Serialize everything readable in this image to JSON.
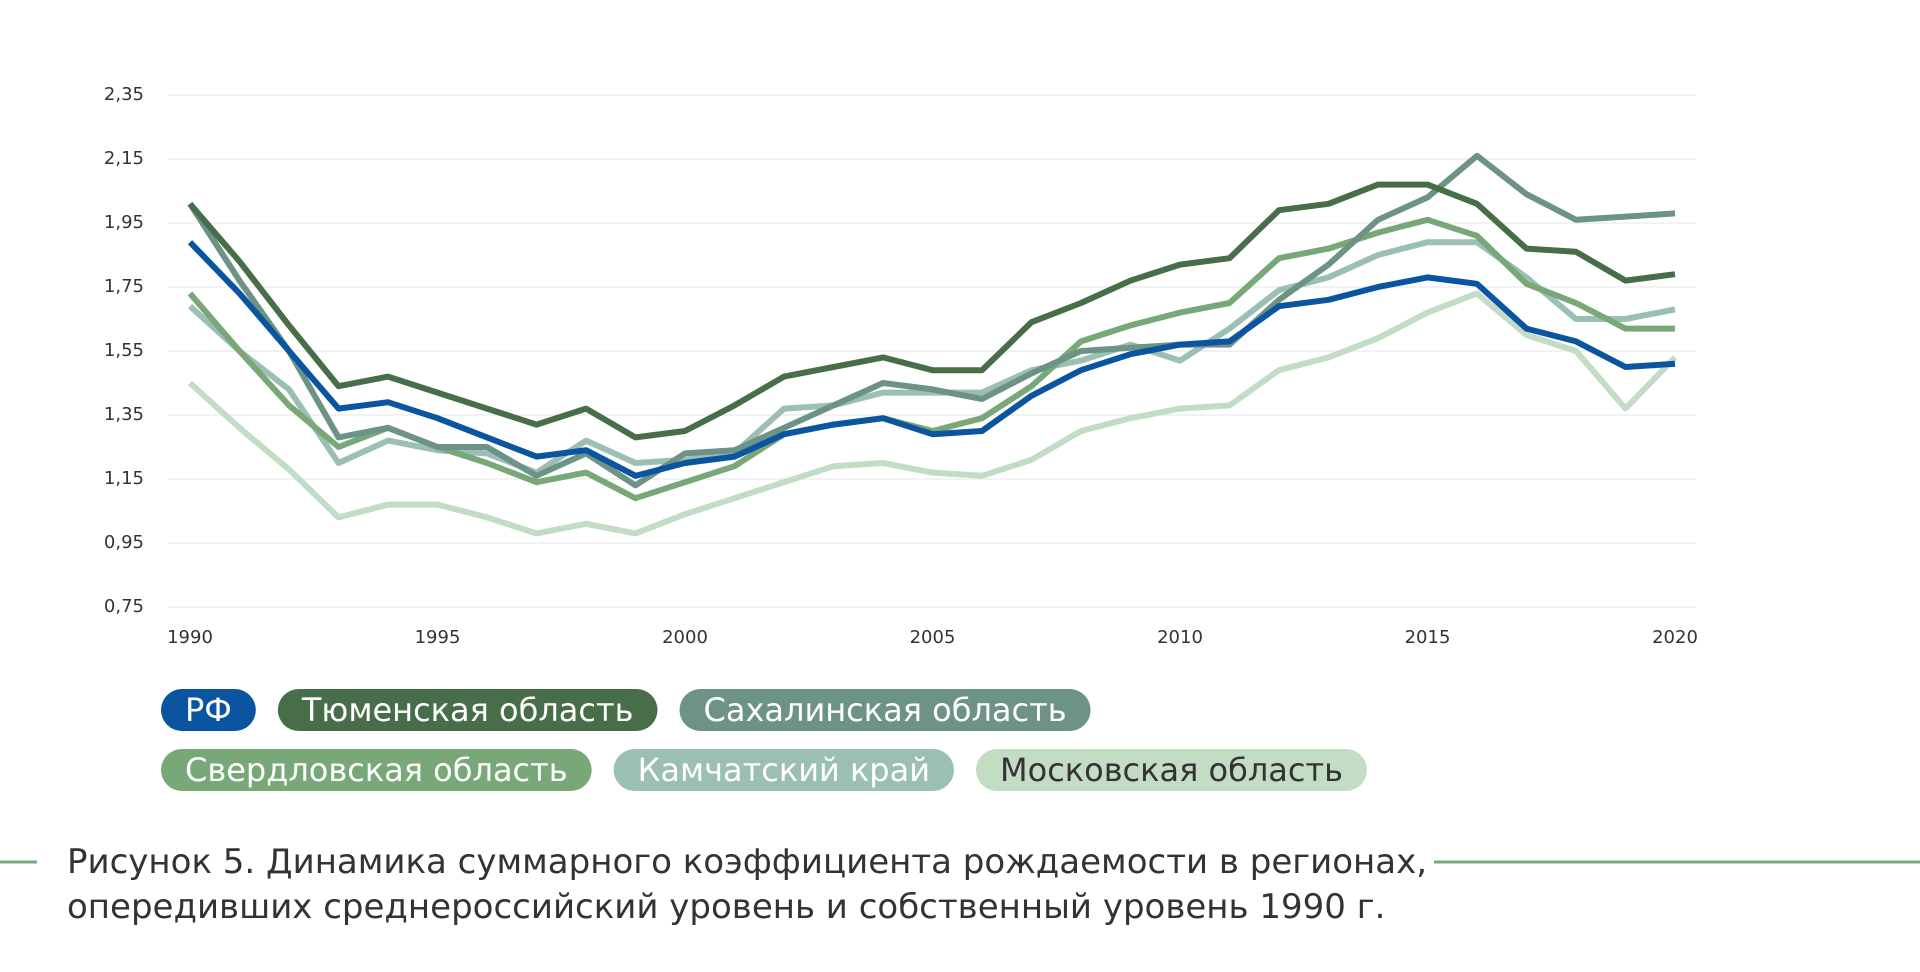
{
  "chart_data": {
    "type": "line",
    "x": [
      1990,
      1991,
      1992,
      1993,
      1994,
      1995,
      1996,
      1997,
      1998,
      1999,
      2000,
      2001,
      2002,
      2003,
      2004,
      2005,
      2006,
      2007,
      2008,
      2009,
      2010,
      2011,
      2012,
      2013,
      2014,
      2015,
      2016,
      2017,
      2018,
      2019,
      2020
    ],
    "series": [
      {
        "name": "Московская область",
        "color": "#c3dcc4",
        "values": [
          1.45,
          1.31,
          1.18,
          1.03,
          1.07,
          1.07,
          1.03,
          0.98,
          1.01,
          0.98,
          1.04,
          1.09,
          1.14,
          1.19,
          1.2,
          1.17,
          1.16,
          1.21,
          1.3,
          1.34,
          1.37,
          1.38,
          1.49,
          1.53,
          1.59,
          1.67,
          1.73,
          1.6,
          1.55,
          1.37,
          1.53
        ]
      },
      {
        "name": "Камчатский край",
        "color": "#9bbfb4",
        "values": [
          1.69,
          1.55,
          1.43,
          1.2,
          1.27,
          1.24,
          1.23,
          1.17,
          1.27,
          1.2,
          1.21,
          1.23,
          1.37,
          1.38,
          1.42,
          1.42,
          1.42,
          1.49,
          1.52,
          1.57,
          1.52,
          1.62,
          1.74,
          1.78,
          1.85,
          1.89,
          1.89,
          1.78,
          1.65,
          1.65,
          1.68
        ]
      },
      {
        "name": "Свердловская область",
        "color": "#79a878",
        "values": [
          1.73,
          1.55,
          1.38,
          1.25,
          1.31,
          1.25,
          1.2,
          1.14,
          1.17,
          1.09,
          1.14,
          1.19,
          1.29,
          1.32,
          1.34,
          1.3,
          1.34,
          1.44,
          1.58,
          1.63,
          1.67,
          1.7,
          1.84,
          1.87,
          1.92,
          1.96,
          1.91,
          1.76,
          1.7,
          1.62,
          1.62
        ]
      },
      {
        "name": "Сахалинская область",
        "color": "#6c9386",
        "values": [
          2.01,
          1.77,
          1.55,
          1.28,
          1.31,
          1.25,
          1.25,
          1.16,
          1.23,
          1.13,
          1.23,
          1.24,
          1.31,
          1.38,
          1.45,
          1.43,
          1.4,
          1.48,
          1.55,
          1.56,
          1.57,
          1.57,
          1.71,
          1.82,
          1.96,
          2.03,
          2.16,
          2.04,
          1.96,
          1.97,
          1.98
        ]
      },
      {
        "name": "Тюменская область",
        "color": "#476e48",
        "values": [
          2.01,
          1.83,
          1.63,
          1.44,
          1.47,
          1.42,
          1.37,
          1.32,
          1.37,
          1.28,
          1.3,
          1.38,
          1.47,
          1.5,
          1.53,
          1.49,
          1.49,
          1.64,
          1.7,
          1.77,
          1.82,
          1.84,
          1.99,
          2.01,
          2.07,
          2.07,
          2.01,
          1.87,
          1.86,
          1.77,
          1.79
        ]
      },
      {
        "name": "РФ",
        "color": "#0b55a0",
        "values": [
          1.89,
          1.73,
          1.55,
          1.37,
          1.39,
          1.34,
          1.28,
          1.22,
          1.24,
          1.16,
          1.2,
          1.22,
          1.29,
          1.32,
          1.34,
          1.29,
          1.3,
          1.41,
          1.49,
          1.54,
          1.57,
          1.58,
          1.69,
          1.71,
          1.75,
          1.78,
          1.76,
          1.62,
          1.58,
          1.5,
          1.51
        ]
      }
    ],
    "legend_order": [
      5,
      4,
      3,
      2,
      1,
      0
    ],
    "xlim": [
      1990,
      2020
    ],
    "xticks": [
      1990,
      1995,
      2000,
      2005,
      2010,
      2015,
      2020
    ],
    "ylim": [
      0.75,
      2.35
    ],
    "yticks": [
      {
        "value": 0.75,
        "label": "0,75"
      },
      {
        "value": 0.95,
        "label": "0,95"
      },
      {
        "value": 1.15,
        "label": "1,15"
      },
      {
        "value": 1.35,
        "label": "1,35"
      },
      {
        "value": 1.55,
        "label": "1,55"
      },
      {
        "value": 1.75,
        "label": "1,75"
      },
      {
        "value": 1.95,
        "label": "1,95"
      },
      {
        "value": 2.15,
        "label": "2,15"
      },
      {
        "value": 2.35,
        "label": "2,35"
      }
    ],
    "grid": true,
    "caption": [
      "Рисунок 5. Динамика суммарного коэффициента рождаемости в регионах,",
      "опередивших среднероссийский уровень и собственный уровень 1990 г."
    ]
  }
}
